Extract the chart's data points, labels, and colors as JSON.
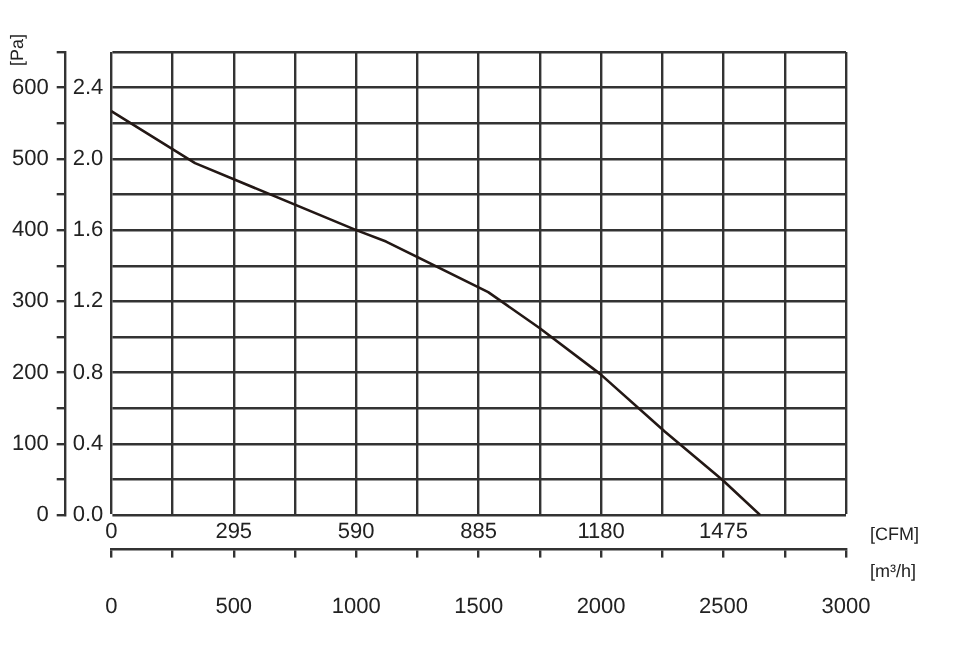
{
  "chart_data": {
    "type": "line",
    "ylabel": "[Pa]",
    "xlabel": "[m³/h]",
    "x2label": "[CFM]",
    "x": [
      0,
      342,
      1000,
      1122,
      1539,
      1747,
      1997,
      2261,
      2497,
      2650
    ],
    "series": [
      {
        "color": "#231815",
        "values": [
          567,
          494,
          400,
          384,
          313,
          263,
          198,
          117,
          49,
          0
        ]
      }
    ],
    "xlim": [
      0,
      3000
    ],
    "xticks": [
      0,
      {
        "value": 250,
        "label": null
      },
      500,
      {
        "value": 750,
        "label": null
      },
      1000,
      {
        "value": 1250,
        "label": null
      },
      1500,
      {
        "value": 1750,
        "label": null
      },
      2000,
      {
        "value": 2250,
        "label": null
      },
      2500,
      {
        "value": 2750,
        "label": null
      },
      3000
    ],
    "x2lim": [
      0,
      1770
    ],
    "x2ticks": [
      0,
      295,
      590,
      885,
      1180,
      1475
    ],
    "ylim": [
      0,
      650
    ],
    "yticks": [
      0,
      {
        "value": 50,
        "label": null
      },
      100,
      {
        "value": 150,
        "label": null
      },
      200,
      {
        "value": 250,
        "label": null
      },
      300,
      {
        "value": 350,
        "label": null
      },
      400,
      {
        "value": 450,
        "label": null
      },
      500,
      {
        "value": 550,
        "label": null
      },
      600,
      {
        "value": 650,
        "label": null
      }
    ],
    "y2lim": [
      0,
      2.6
    ],
    "y2ticks": [
      {
        "value": 0,
        "label": "0.0"
      },
      0.4,
      0.8,
      1.2,
      1.6,
      {
        "value": 2,
        "label": "2.0"
      },
      2.4
    ],
    "grid": true,
    "legend": false,
    "marker": "none",
    "line_style": "solid"
  }
}
